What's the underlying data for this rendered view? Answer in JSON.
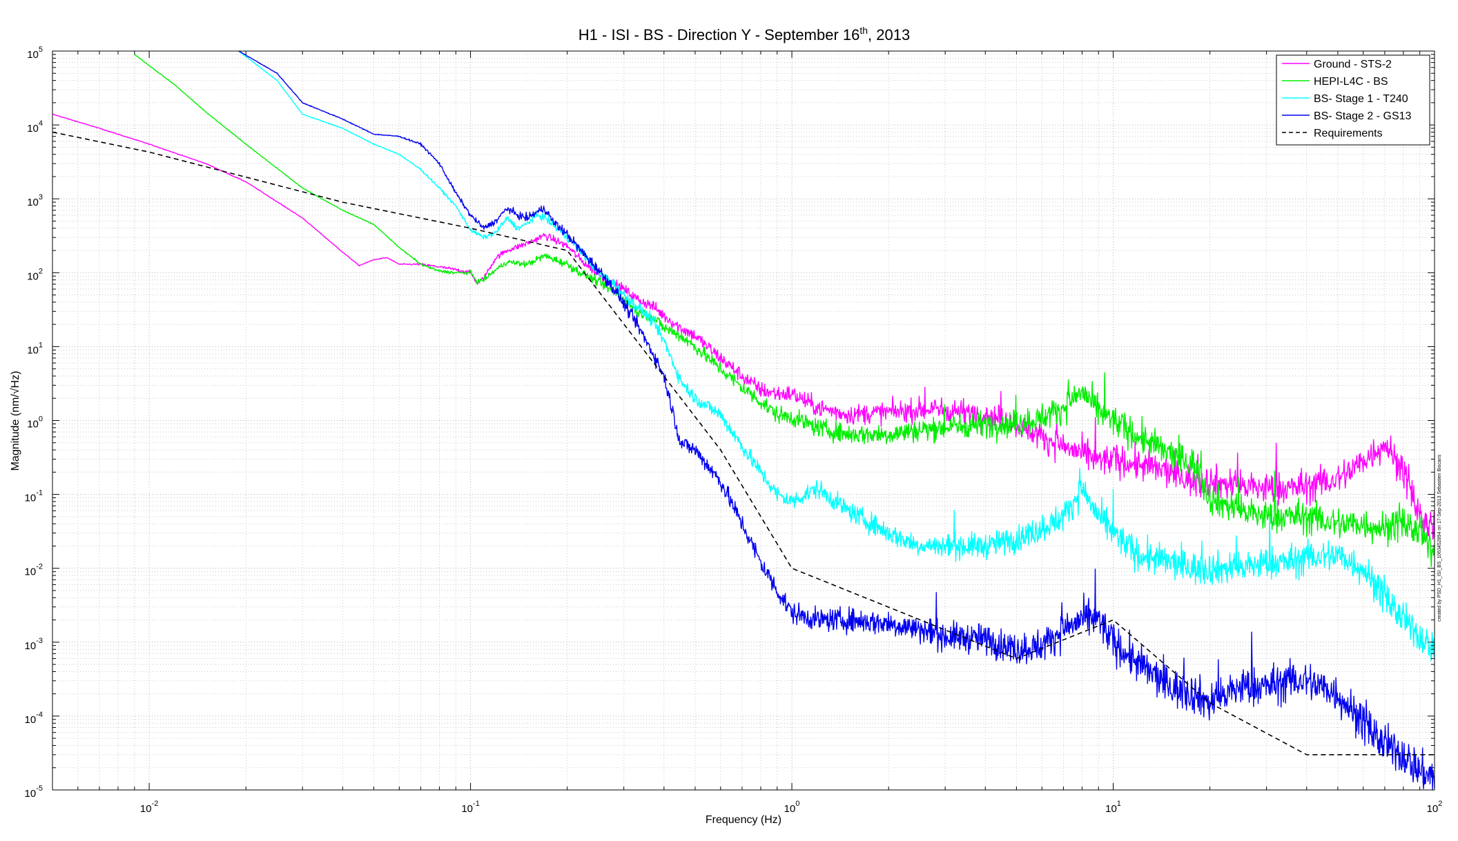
{
  "chart_data": {
    "type": "line",
    "title": "H1 - ISI - BS - Direction Y - September 16",
    "title_superscript": "th",
    "title_suffix": ", 2013",
    "xlabel": "Frequency (Hz)",
    "ylabel": "Magnitude (nm/√Hz)",
    "x_scale": "log",
    "y_scale": "log",
    "xlim": [
      0.005,
      100
    ],
    "ylim": [
      1e-05,
      100000
    ],
    "grid": true,
    "minor_grid": true,
    "legend_position": "top-right",
    "x_ticks": [
      {
        "base": "10",
        "exp": "-2",
        "value": 0.01
      },
      {
        "base": "10",
        "exp": "-1",
        "value": 0.1
      },
      {
        "base": "10",
        "exp": "0",
        "value": 1
      },
      {
        "base": "10",
        "exp": "1",
        "value": 10
      },
      {
        "base": "10",
        "exp": "2",
        "value": 100
      }
    ],
    "y_ticks": [
      {
        "base": "10",
        "exp": "5",
        "value": 100000
      },
      {
        "base": "10",
        "exp": "4",
        "value": 10000
      },
      {
        "base": "10",
        "exp": "3",
        "value": 1000
      },
      {
        "base": "10",
        "exp": "2",
        "value": 100
      },
      {
        "base": "10",
        "exp": "1",
        "value": 10
      },
      {
        "base": "10",
        "exp": "0",
        "value": 1
      },
      {
        "base": "10",
        "exp": "-1",
        "value": 0.1
      },
      {
        "base": "10",
        "exp": "-2",
        "value": 0.01
      },
      {
        "base": "10",
        "exp": "-3",
        "value": 0.001
      },
      {
        "base": "10",
        "exp": "-4",
        "value": 0.0001
      },
      {
        "base": "10",
        "exp": "-5",
        "value": 1e-05
      }
    ],
    "credit": "created by PSD_H1_ISI_BS_1063452894 on 17-Sep-2013 Sebastien Biscans",
    "series": [
      {
        "name": "Ground - STS-2",
        "color": "#ff00ff",
        "style": "solid",
        "noise": 0.1,
        "x": [
          0.005,
          0.007,
          0.01,
          0.015,
          0.02,
          0.03,
          0.04,
          0.045,
          0.05,
          0.055,
          0.06,
          0.07,
          0.08,
          0.09,
          0.1,
          0.105,
          0.11,
          0.12,
          0.13,
          0.15,
          0.17,
          0.2,
          0.22,
          0.25,
          0.28,
          0.3,
          0.33,
          0.37,
          0.4,
          0.45,
          0.5,
          0.6,
          0.7,
          0.8,
          0.9,
          1.0,
          1.2,
          1.5,
          2,
          2.5,
          3,
          4,
          5,
          6,
          7,
          8,
          9,
          10,
          12,
          15,
          18,
          20,
          25,
          30,
          35,
          40,
          50,
          60,
          70,
          80,
          90,
          100
        ],
        "y": [
          14000,
          9000,
          5500,
          3000,
          1700,
          550,
          190,
          125,
          150,
          160,
          130,
          130,
          120,
          110,
          100,
          72,
          85,
          160,
          200,
          250,
          320,
          230,
          150,
          95,
          70,
          60,
          44,
          35,
          26,
          18,
          14,
          7,
          4,
          2.6,
          2.3,
          2.3,
          1.5,
          1.2,
          1.3,
          1.4,
          1.4,
          1.2,
          0.9,
          0.6,
          0.45,
          0.35,
          0.28,
          0.3,
          0.25,
          0.2,
          0.15,
          0.15,
          0.13,
          0.12,
          0.12,
          0.13,
          0.16,
          0.28,
          0.5,
          0.2,
          0.05,
          0.03
        ]
      },
      {
        "name": "HEPI-L4C - BS",
        "color": "#00ee00",
        "style": "solid",
        "noise": 0.1,
        "x": [
          0.009,
          0.012,
          0.015,
          0.02,
          0.03,
          0.04,
          0.05,
          0.06,
          0.07,
          0.08,
          0.09,
          0.1,
          0.105,
          0.11,
          0.12,
          0.13,
          0.15,
          0.17,
          0.2,
          0.22,
          0.25,
          0.28,
          0.3,
          0.33,
          0.37,
          0.4,
          0.45,
          0.5,
          0.6,
          0.7,
          0.8,
          0.9,
          1.0,
          1.2,
          1.5,
          2,
          2.5,
          3,
          4,
          5,
          6,
          7,
          8,
          9,
          10,
          12,
          15,
          18,
          20,
          25,
          30,
          35,
          40,
          50,
          60,
          70,
          80,
          90,
          100
        ],
        "y": [
          90000,
          35000,
          15000,
          5500,
          1400,
          700,
          450,
          220,
          130,
          105,
          100,
          100,
          75,
          80,
          110,
          140,
          130,
          170,
          130,
          100,
          75,
          55,
          45,
          30,
          25,
          18,
          14,
          10,
          5,
          2.8,
          1.8,
          1.2,
          1.1,
          0.8,
          0.65,
          0.65,
          0.75,
          0.8,
          0.9,
          0.9,
          1.1,
          1.5,
          2.5,
          1.3,
          1.0,
          0.6,
          0.35,
          0.25,
          0.09,
          0.06,
          0.05,
          0.05,
          0.05,
          0.04,
          0.04,
          0.035,
          0.04,
          0.03,
          0.015
        ]
      },
      {
        "name": "BS- Stage 1 - T240",
        "color": "#00ffff",
        "style": "solid",
        "noise": 0.1,
        "x": [
          0.019,
          0.025,
          0.03,
          0.04,
          0.05,
          0.06,
          0.07,
          0.08,
          0.09,
          0.1,
          0.11,
          0.12,
          0.13,
          0.14,
          0.15,
          0.16,
          0.17,
          0.2,
          0.22,
          0.25,
          0.28,
          0.3,
          0.33,
          0.37,
          0.4,
          0.45,
          0.5,
          0.6,
          0.7,
          0.8,
          0.9,
          1.0,
          1.2,
          1.5,
          2,
          2.5,
          3,
          4,
          5,
          6,
          7,
          8,
          9,
          10,
          12,
          15,
          18,
          20,
          25,
          30,
          35,
          40,
          50,
          60,
          70,
          80,
          90,
          100
        ],
        "y": [
          100000,
          40000,
          14000,
          9000,
          5500,
          4000,
          2500,
          1400,
          800,
          380,
          300,
          350,
          550,
          400,
          460,
          600,
          560,
          300,
          200,
          100,
          70,
          50,
          35,
          22,
          12,
          3.5,
          2,
          1.2,
          0.45,
          0.2,
          0.1,
          0.08,
          0.12,
          0.06,
          0.03,
          0.02,
          0.02,
          0.02,
          0.025,
          0.035,
          0.05,
          0.12,
          0.05,
          0.03,
          0.015,
          0.012,
          0.01,
          0.01,
          0.01,
          0.012,
          0.012,
          0.014,
          0.015,
          0.01,
          0.004,
          0.002,
          0.0012,
          0.0008
        ]
      },
      {
        "name": "BS- Stage 2 - GS13",
        "color": "#0000ee",
        "style": "solid",
        "noise": 0.12,
        "x": [
          0.019,
          0.025,
          0.03,
          0.04,
          0.05,
          0.06,
          0.07,
          0.08,
          0.09,
          0.1,
          0.11,
          0.12,
          0.13,
          0.14,
          0.15,
          0.16,
          0.17,
          0.18,
          0.2,
          0.22,
          0.25,
          0.28,
          0.3,
          0.33,
          0.37,
          0.4,
          0.45,
          0.5,
          0.6,
          0.7,
          0.8,
          0.9,
          1.0,
          1.2,
          1.5,
          2,
          2.5,
          3,
          4,
          5,
          6,
          7,
          8,
          9,
          10,
          12,
          15,
          18,
          20,
          25,
          30,
          35,
          40,
          50,
          60,
          70,
          80,
          90,
          100
        ],
        "y": [
          100000,
          50000,
          20000,
          12000,
          7500,
          7000,
          5500,
          3000,
          1200,
          600,
          400,
          500,
          750,
          600,
          550,
          650,
          750,
          500,
          330,
          200,
          110,
          60,
          38,
          20,
          8,
          4,
          0.5,
          0.4,
          0.15,
          0.04,
          0.012,
          0.005,
          0.0025,
          0.002,
          0.002,
          0.0018,
          0.0015,
          0.0012,
          0.0011,
          0.0008,
          0.0009,
          0.0015,
          0.002,
          0.002,
          0.001,
          0.0005,
          0.00025,
          0.0002,
          0.00015,
          0.00025,
          0.00025,
          0.0003,
          0.0003,
          0.0002,
          8e-05,
          4e-05,
          3e-05,
          1.8e-05,
          1.5e-05
        ]
      },
      {
        "name": "Requirements",
        "color": "#000000",
        "style": "dashed",
        "noise": 0,
        "x": [
          0.005,
          0.01,
          0.04,
          0.1,
          0.2,
          0.6,
          1,
          5,
          10,
          20,
          40,
          100
        ],
        "y": [
          8000,
          4300,
          900,
          400,
          200,
          0.4,
          0.01,
          0.0006,
          0.002,
          0.00015,
          3e-05,
          3e-05
        ]
      }
    ]
  }
}
